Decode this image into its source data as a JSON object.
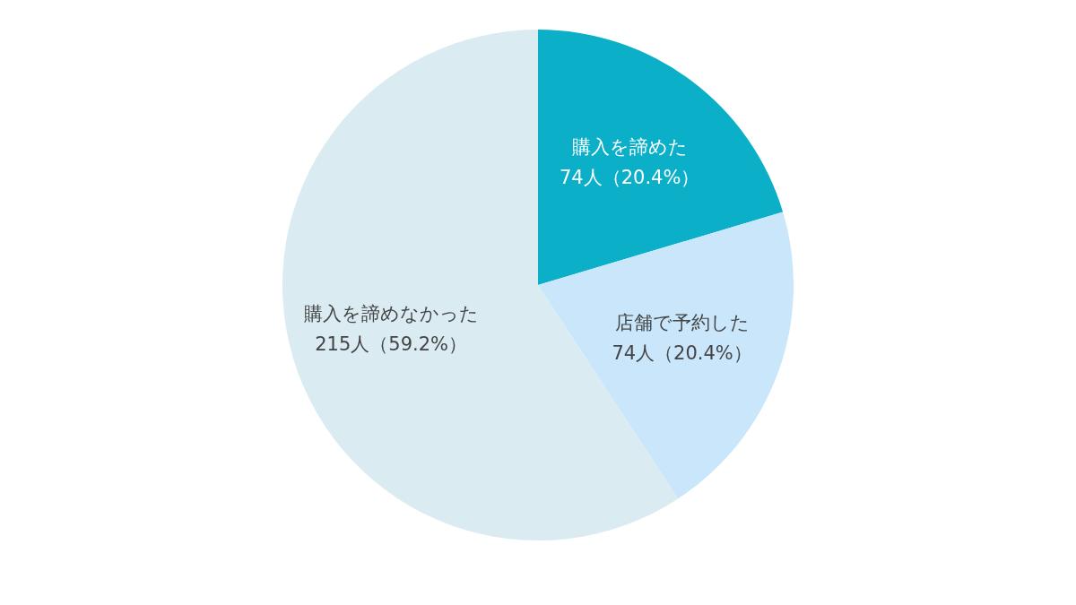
{
  "chart_data": {
    "type": "pie",
    "categories": [
      "購入を諦めた",
      "店舗で予約した",
      "購入を諦めなかった"
    ],
    "values": [
      74,
      74,
      215
    ],
    "value_labels": [
      "74人（20.4%）",
      "74人（20.4%）",
      "215人（59.2%）"
    ],
    "colors": [
      "#0bb0c8",
      "#c9e6fb",
      "#daebf2"
    ]
  }
}
